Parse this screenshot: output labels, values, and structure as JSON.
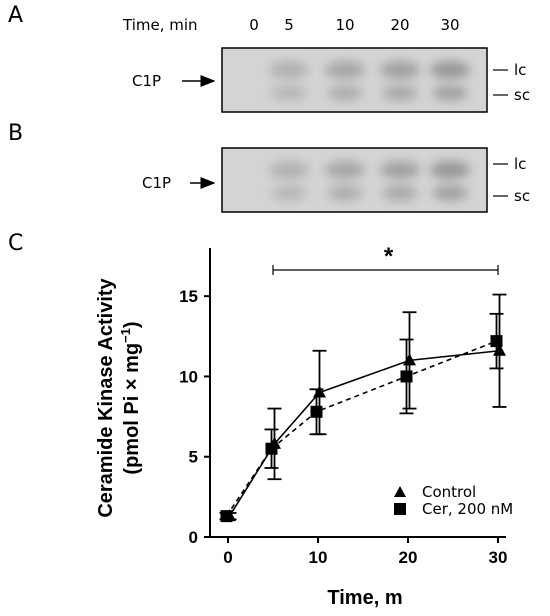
{
  "panels": {
    "a": "A",
    "b": "B",
    "c": "C"
  },
  "gel": {
    "time_header": "Time, min",
    "time_points": [
      "0",
      "5",
      "10",
      "20",
      "30"
    ],
    "band_label": "C1P",
    "lane_label_top": "lc",
    "lane_label_bottom": "sc",
    "band_intensity": [
      0.0,
      0.45,
      0.6,
      0.7,
      0.85
    ]
  },
  "chart_data": {
    "type": "line",
    "xlabel": "Time, m",
    "ylabel_line1": "Ceramide Kinase Activity",
    "ylabel_line2": "(pmol Pi × mg",
    "ylabel_sup": "−1",
    "ylabel_close": ")",
    "x": [
      0,
      5,
      10,
      20,
      30
    ],
    "xlim": [
      0,
      30
    ],
    "ylim": [
      0,
      18
    ],
    "xticks": [
      "0",
      "10",
      "20",
      "30"
    ],
    "yticks": [
      "0",
      "5",
      "10",
      "15"
    ],
    "series": [
      {
        "name": "Control",
        "marker": "triangle",
        "line": "solid",
        "values": [
          1.3,
          5.8,
          9.0,
          11.0,
          11.6
        ],
        "errors": [
          0.2,
          2.2,
          2.6,
          3.0,
          3.5
        ]
      },
      {
        "name": "Cer, 200 nM",
        "marker": "square",
        "line": "dashed",
        "values": [
          1.3,
          5.5,
          7.8,
          10.0,
          12.2
        ],
        "errors": [
          0.2,
          1.2,
          1.4,
          2.3,
          1.7
        ]
      }
    ],
    "significance": {
      "label": "*",
      "from_x": 5,
      "to_x": 30
    },
    "grid": false,
    "legend_position": "bottom-right"
  }
}
